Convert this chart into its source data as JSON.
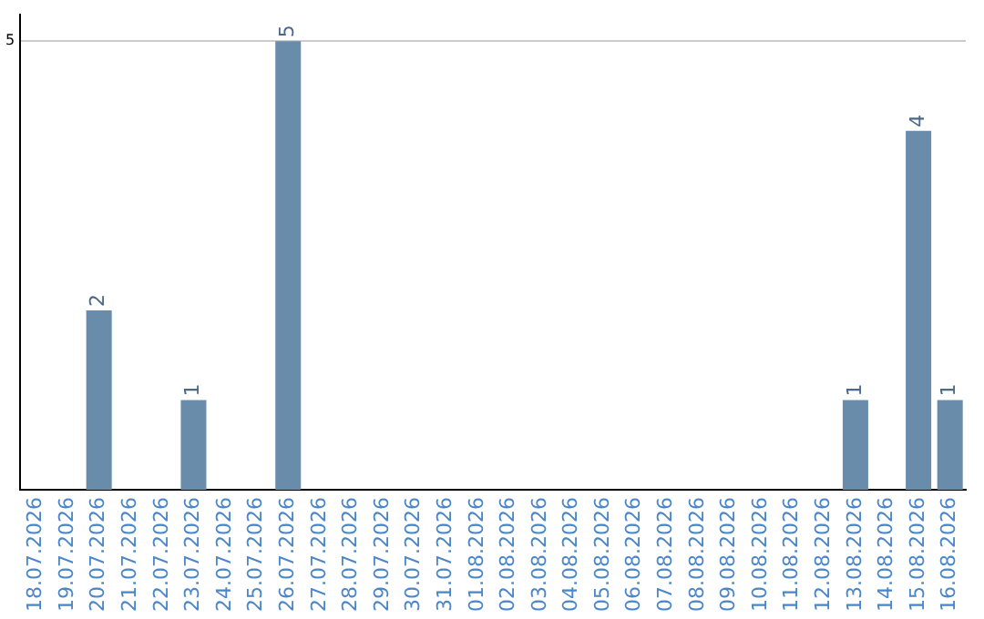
{
  "chart_data": {
    "type": "bar",
    "categories": [
      "18.07.2026",
      "19.07.2026",
      "20.07.2026",
      "21.07.2026",
      "22.07.2026",
      "23.07.2026",
      "24.07.2026",
      "25.07.2026",
      "26.07.2026",
      "27.07.2026",
      "28.07.2026",
      "29.07.2026",
      "30.07.2026",
      "31.07.2026",
      "01.08.2026",
      "02.08.2026",
      "03.08.2026",
      "04.08.2026",
      "05.08.2026",
      "06.08.2026",
      "07.08.2026",
      "08.08.2026",
      "09.08.2026",
      "10.08.2026",
      "11.08.2026",
      "12.08.2026",
      "13.08.2026",
      "14.08.2026",
      "15.08.2026",
      "16.08.2026"
    ],
    "values": [
      0,
      0,
      2,
      0,
      0,
      1,
      0,
      0,
      5,
      0,
      0,
      0,
      0,
      0,
      0,
      0,
      0,
      0,
      0,
      0,
      0,
      0,
      0,
      0,
      0,
      0,
      1,
      0,
      4,
      1
    ],
    "value_labels": [
      null,
      null,
      "2",
      null,
      null,
      "1",
      null,
      null,
      "5",
      null,
      null,
      null,
      null,
      null,
      null,
      null,
      null,
      null,
      null,
      null,
      null,
      null,
      null,
      null,
      null,
      null,
      "1",
      null,
      "4",
      "1"
    ],
    "color": "#6a8cab",
    "ylim": [
      0,
      5.3
    ],
    "yticks": [
      5
    ],
    "grid": "y",
    "legend": false
  }
}
